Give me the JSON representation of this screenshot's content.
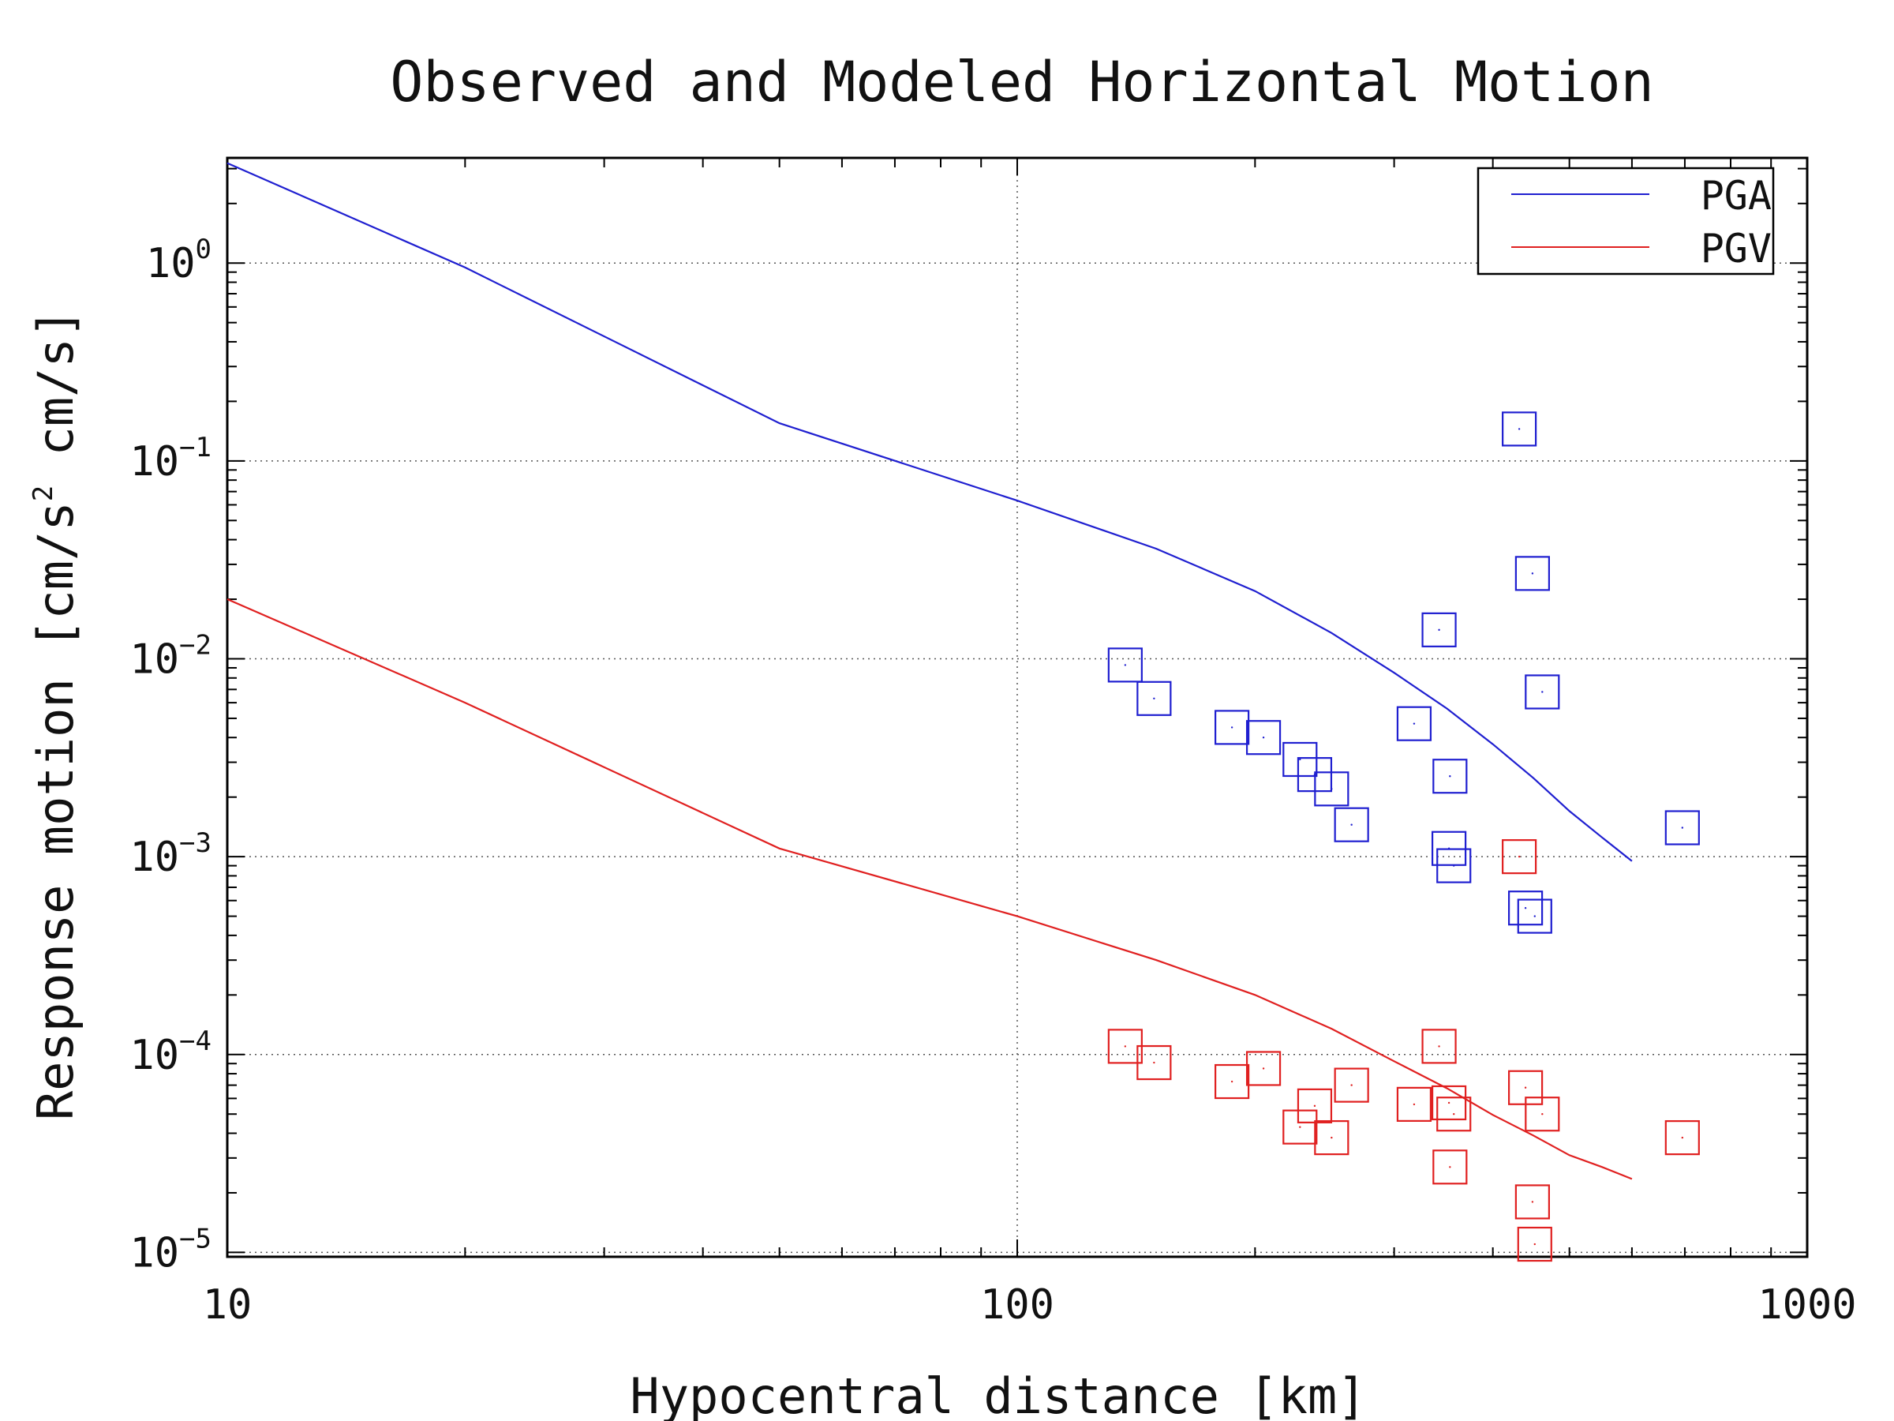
{
  "chart_data": {
    "type": "line",
    "title": "Observed and Modeled Horizontal Motion",
    "xlabel": "Hypocentral distance [km]",
    "ylabel": "Response motion [cm/s",
    "ylabel_sup": "2",
    "ylabel_tail": " cm/s]",
    "x_scale": "log",
    "y_scale": "log",
    "xlim": [
      10,
      1000
    ],
    "ylim": [
      9.5e-06,
      3.4
    ],
    "grid": true,
    "legend_position": "top-right",
    "x_ticks": [
      {
        "value": 10,
        "label": "10"
      },
      {
        "value": 100,
        "label": "100"
      },
      {
        "value": 1000,
        "label": "1000"
      }
    ],
    "y_ticks": [
      {
        "value": 1,
        "base": "10",
        "exp": "0"
      },
      {
        "value": 0.1,
        "base": "10",
        "exp": "−1"
      },
      {
        "value": 0.01,
        "base": "10",
        "exp": "−2"
      },
      {
        "value": 0.001,
        "base": "10",
        "exp": "−3"
      },
      {
        "value": 0.0001,
        "base": "10",
        "exp": "−4"
      },
      {
        "value": 1e-05,
        "base": "10",
        "exp": "−5"
      }
    ],
    "series": [
      {
        "name": "PGA",
        "color": "#1f1fd0",
        "x": [
          10,
          20,
          50,
          100,
          150,
          200,
          250,
          300,
          350,
          400,
          450,
          500,
          550,
          600
        ],
        "y": [
          3.2,
          0.95,
          0.155,
          0.063,
          0.036,
          0.022,
          0.0135,
          0.0085,
          0.0056,
          0.0037,
          0.0025,
          0.0017,
          0.00125,
          0.00095
        ]
      },
      {
        "name": "PGV",
        "color": "#e02020",
        "x": [
          10,
          20,
          50,
          100,
          150,
          200,
          250,
          300,
          350,
          400,
          450,
          500,
          550,
          600
        ],
        "y": [
          0.02,
          0.006,
          0.0011,
          0.0005,
          0.0003,
          0.0002,
          0.000135,
          9.25e-05,
          6.75e-05,
          4.95e-05,
          3.9e-05,
          3.1e-05,
          2.7e-05,
          2.35e-05
        ]
      }
    ],
    "observed": [
      {
        "name": "PGA observed",
        "color": "#1f1fd0",
        "points": [
          [
            137,
            0.0093
          ],
          [
            149,
            0.0063
          ],
          [
            187,
            0.0045
          ],
          [
            205,
            0.004
          ],
          [
            228,
            0.0031
          ],
          [
            238,
            0.0026
          ],
          [
            250,
            0.0022
          ],
          [
            265,
            0.00145
          ],
          [
            318,
            0.0047
          ],
          [
            342,
            0.014
          ],
          [
            352,
            0.0011
          ],
          [
            353,
            0.00255
          ],
          [
            357,
            0.0009
          ],
          [
            432,
            0.145
          ],
          [
            440,
            0.00055
          ],
          [
            449,
            0.027
          ],
          [
            452,
            0.0005
          ],
          [
            462,
            0.0068
          ],
          [
            695,
            0.0014
          ]
        ]
      },
      {
        "name": "PGV observed",
        "color": "#e02020",
        "points": [
          [
            137,
            0.00011
          ],
          [
            149,
            9.1e-05
          ],
          [
            187,
            7.3e-05
          ],
          [
            205,
            8.5e-05
          ],
          [
            228,
            4.3e-05
          ],
          [
            238,
            5.5e-05
          ],
          [
            250,
            3.8e-05
          ],
          [
            265,
            7e-05
          ],
          [
            318,
            5.6e-05
          ],
          [
            342,
            0.00011
          ],
          [
            352,
            5.7e-05
          ],
          [
            353,
            2.7e-05
          ],
          [
            357,
            5e-05
          ],
          [
            432,
            0.001
          ],
          [
            440,
            6.8e-05
          ],
          [
            449,
            1.8e-05
          ],
          [
            452,
            1.1e-05
          ],
          [
            462,
            5e-05
          ],
          [
            695,
            3.8e-05
          ]
        ]
      }
    ]
  }
}
